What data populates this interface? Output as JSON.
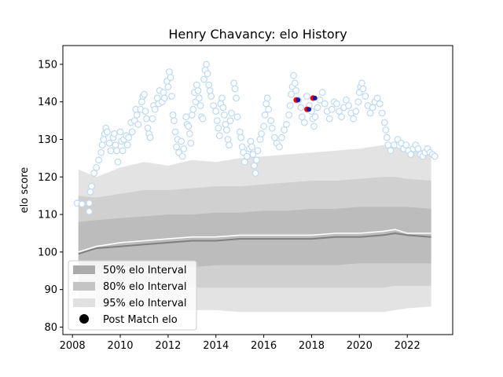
{
  "chart_data": {
    "type": "scatter",
    "title": "Henry Chavancy: elo History",
    "xlabel": "",
    "ylabel": "elo score",
    "xlim": [
      2007.6,
      2023.9
    ],
    "ylim": [
      78,
      155
    ],
    "x_ticks": [
      2008,
      2010,
      2012,
      2014,
      2016,
      2018,
      2020,
      2022
    ],
    "y_ticks": [
      80,
      90,
      100,
      110,
      120,
      130,
      140,
      150
    ],
    "colors": {
      "band95": "#e3e3e3",
      "band80": "#d0d0d0",
      "band50": "#bcbcbc",
      "median": "#7f7f7f",
      "player_line": "#ffffff",
      "marker_edge": "#bcd9f2",
      "highlight_red": "#ff0000",
      "highlight_blue": "#1a1aa0"
    },
    "legend": {
      "position": "lower-left",
      "entries": [
        {
          "label": "50% elo Interval",
          "swatch": "#ababab"
        },
        {
          "label": "80% elo Interval",
          "swatch": "#c4c4c4"
        },
        {
          "label": "95% elo Interval",
          "swatch": "#e0e0e0"
        },
        {
          "label": "Post Match elo",
          "swatch": "#000000"
        }
      ]
    },
    "intervals": {
      "x": [
        2008.25,
        2009.0,
        2010.0,
        2011.0,
        2012.0,
        2013.0,
        2014.0,
        2015.0,
        2016.0,
        2017.0,
        2018.0,
        2019.0,
        2020.0,
        2021.0,
        2021.5,
        2022.0,
        2023.0
      ],
      "p95_upper": [
        122.0,
        120.0,
        122.5,
        124.0,
        123.0,
        124.5,
        124.0,
        125.0,
        125.5,
        126.0,
        126.5,
        127.0,
        127.5,
        128.5,
        128.0,
        127.5,
        127.0
      ],
      "p95_lower": [
        85.0,
        85.5,
        85.0,
        84.5,
        84.5,
        84.5,
        84.5,
        84.0,
        84.0,
        84.0,
        84.0,
        84.0,
        84.0,
        84.0,
        84.5,
        85.0,
        85.5
      ],
      "p80_upper": [
        115.0,
        114.5,
        115.5,
        116.5,
        116.5,
        117.0,
        117.5,
        117.5,
        118.0,
        118.5,
        119.0,
        119.0,
        119.5,
        120.0,
        120.0,
        119.5,
        119.0
      ],
      "p80_lower": [
        89.5,
        90.0,
        90.0,
        90.5,
        90.5,
        90.5,
        90.5,
        90.5,
        90.5,
        90.5,
        90.5,
        90.5,
        90.5,
        90.5,
        91.0,
        91.0,
        91.0
      ],
      "p50_upper": [
        108.0,
        108.5,
        109.0,
        109.5,
        110.0,
        110.0,
        110.5,
        110.5,
        111.0,
        111.0,
        111.5,
        111.5,
        112.0,
        112.0,
        112.0,
        112.0,
        111.5
      ],
      "p50_lower": [
        95.5,
        95.5,
        96.0,
        96.0,
        96.0,
        96.0,
        96.5,
        96.5,
        96.5,
        96.5,
        96.5,
        96.5,
        97.0,
        97.0,
        97.0,
        97.0,
        97.0
      ],
      "median": [
        99.5,
        101.0,
        101.5,
        102.0,
        102.5,
        103.0,
        103.0,
        103.5,
        103.5,
        103.5,
        103.5,
        104.0,
        104.0,
        104.5,
        105.0,
        104.5,
        104.0
      ],
      "player_line": [
        100.0,
        101.5,
        102.5,
        103.0,
        103.5,
        104.0,
        104.0,
        104.5,
        104.5,
        104.5,
        104.5,
        105.0,
        105.0,
        105.5,
        106.0,
        105.0,
        105.0
      ]
    },
    "post_match_elo": [
      [
        2008.2,
        113.0
      ],
      [
        2008.4,
        112.8
      ],
      [
        2008.7,
        113.0
      ],
      [
        2008.7,
        110.8
      ],
      [
        2008.75,
        116.0
      ],
      [
        2008.8,
        117.5
      ],
      [
        2008.9,
        121.0
      ],
      [
        2009.0,
        122.5
      ],
      [
        2009.1,
        124.5
      ],
      [
        2009.2,
        126.5
      ],
      [
        2009.25,
        128.5
      ],
      [
        2009.3,
        130.0
      ],
      [
        2009.35,
        131.5
      ],
      [
        2009.4,
        133.0
      ],
      [
        2009.45,
        132.0
      ],
      [
        2009.55,
        129.0
      ],
      [
        2009.6,
        127.0
      ],
      [
        2009.7,
        130.5
      ],
      [
        2009.75,
        131.5
      ],
      [
        2009.8,
        128.5
      ],
      [
        2009.85,
        127.0
      ],
      [
        2009.9,
        124.0
      ],
      [
        2010.0,
        132.0
      ],
      [
        2010.05,
        129.5
      ],
      [
        2010.1,
        127.0
      ],
      [
        2010.15,
        130.0
      ],
      [
        2010.25,
        131.0
      ],
      [
        2010.3,
        128.5
      ],
      [
        2010.35,
        130.5
      ],
      [
        2010.45,
        134.5
      ],
      [
        2010.5,
        132.0
      ],
      [
        2010.6,
        135.0
      ],
      [
        2010.65,
        138.0
      ],
      [
        2010.7,
        136.5
      ],
      [
        2010.75,
        134.0
      ],
      [
        2010.85,
        138.0
      ],
      [
        2010.9,
        140.0
      ],
      [
        2010.95,
        141.5
      ],
      [
        2011.0,
        142.0
      ],
      [
        2011.05,
        137.5
      ],
      [
        2011.1,
        135.5
      ],
      [
        2011.15,
        133.0
      ],
      [
        2011.2,
        131.5
      ],
      [
        2011.25,
        130.5
      ],
      [
        2011.35,
        135.5
      ],
      [
        2011.4,
        139.0
      ],
      [
        2011.45,
        138.0
      ],
      [
        2011.55,
        141.0
      ],
      [
        2011.6,
        139.5
      ],
      [
        2011.65,
        143.0
      ],
      [
        2011.75,
        140.0
      ],
      [
        2011.8,
        142.5
      ],
      [
        2011.85,
        141.0
      ],
      [
        2011.95,
        145.5
      ],
      [
        2012.0,
        144.0
      ],
      [
        2012.05,
        148.0
      ],
      [
        2012.1,
        146.5
      ],
      [
        2012.15,
        141.5
      ],
      [
        2012.2,
        136.5
      ],
      [
        2012.25,
        135.0
      ],
      [
        2012.3,
        132.0
      ],
      [
        2012.35,
        128.0
      ],
      [
        2012.4,
        130.0
      ],
      [
        2012.45,
        126.5
      ],
      [
        2012.55,
        129.5
      ],
      [
        2012.6,
        125.5
      ],
      [
        2012.65,
        127.5
      ],
      [
        2012.75,
        136.0
      ],
      [
        2012.8,
        134.0
      ],
      [
        2012.85,
        133.5
      ],
      [
        2012.9,
        131.5
      ],
      [
        2012.95,
        129.0
      ],
      [
        2013.0,
        136.5
      ],
      [
        2013.05,
        138.0
      ],
      [
        2013.1,
        142.5
      ],
      [
        2013.15,
        140.0
      ],
      [
        2013.2,
        144.5
      ],
      [
        2013.25,
        143.0
      ],
      [
        2013.3,
        141.0
      ],
      [
        2013.35,
        139.0
      ],
      [
        2013.4,
        136.0
      ],
      [
        2013.45,
        135.5
      ],
      [
        2013.5,
        146.0
      ],
      [
        2013.55,
        148.5
      ],
      [
        2013.6,
        150.0
      ],
      [
        2013.65,
        147.5
      ],
      [
        2013.7,
        144.5
      ],
      [
        2013.75,
        143.0
      ],
      [
        2013.8,
        141.5
      ],
      [
        2013.9,
        139.0
      ],
      [
        2014.0,
        137.5
      ],
      [
        2014.05,
        135.0
      ],
      [
        2014.1,
        133.0
      ],
      [
        2014.15,
        131.0
      ],
      [
        2014.2,
        139.5
      ],
      [
        2014.25,
        141.0
      ],
      [
        2014.3,
        138.5
      ],
      [
        2014.35,
        136.5
      ],
      [
        2014.4,
        134.0
      ],
      [
        2014.45,
        132.5
      ],
      [
        2014.5,
        130.0
      ],
      [
        2014.55,
        128.5
      ],
      [
        2014.6,
        135.0
      ],
      [
        2014.65,
        137.0
      ],
      [
        2014.75,
        145.0
      ],
      [
        2014.8,
        143.5
      ],
      [
        2014.85,
        141.0
      ],
      [
        2014.9,
        136.0
      ],
      [
        2015.0,
        132.0
      ],
      [
        2015.05,
        130.5
      ],
      [
        2015.1,
        128.0
      ],
      [
        2015.15,
        126.5
      ],
      [
        2015.2,
        124.0
      ],
      [
        2015.3,
        125.5
      ],
      [
        2015.4,
        127.5
      ],
      [
        2015.45,
        129.5
      ],
      [
        2015.5,
        128.0
      ],
      [
        2015.55,
        126.0
      ],
      [
        2015.6,
        123.0
      ],
      [
        2015.65,
        121.0
      ],
      [
        2015.7,
        124.5
      ],
      [
        2015.75,
        127.0
      ],
      [
        2015.85,
        130.0
      ],
      [
        2015.9,
        131.5
      ],
      [
        2016.0,
        133.5
      ],
      [
        2016.05,
        136.5
      ],
      [
        2016.1,
        139.5
      ],
      [
        2016.15,
        141.0
      ],
      [
        2016.2,
        138.0
      ],
      [
        2016.3,
        135.0
      ],
      [
        2016.35,
        133.0
      ],
      [
        2016.45,
        130.5
      ],
      [
        2016.55,
        129.0
      ],
      [
        2016.65,
        128.0
      ],
      [
        2016.75,
        130.5
      ],
      [
        2016.85,
        132.5
      ],
      [
        2016.95,
        134.0
      ],
      [
        2017.05,
        136.5
      ],
      [
        2017.1,
        139.0
      ],
      [
        2017.15,
        142.0
      ],
      [
        2017.2,
        144.0
      ],
      [
        2017.25,
        147.0
      ],
      [
        2017.3,
        145.0
      ],
      [
        2017.35,
        143.0
      ],
      [
        2017.45,
        140.5
      ],
      [
        2017.55,
        138.5
      ],
      [
        2017.6,
        136.0
      ],
      [
        2017.7,
        134.5
      ],
      [
        2017.8,
        141.5
      ],
      [
        2017.9,
        139.0
      ],
      [
        2018.0,
        137.5
      ],
      [
        2018.05,
        135.5
      ],
      [
        2018.1,
        133.5
      ],
      [
        2018.15,
        136.0
      ],
      [
        2018.25,
        138.5
      ],
      [
        2018.35,
        140.5
      ],
      [
        2018.45,
        142.5
      ],
      [
        2018.55,
        139.5
      ],
      [
        2018.65,
        137.5
      ],
      [
        2018.75,
        135.5
      ],
      [
        2018.85,
        138.0
      ],
      [
        2018.95,
        140.0
      ],
      [
        2019.05,
        139.5
      ],
      [
        2019.15,
        137.5
      ],
      [
        2019.25,
        136.0
      ],
      [
        2019.35,
        138.5
      ],
      [
        2019.45,
        140.5
      ],
      [
        2019.55,
        139.0
      ],
      [
        2019.65,
        137.0
      ],
      [
        2019.75,
        135.5
      ],
      [
        2019.85,
        137.5
      ],
      [
        2019.95,
        140.0
      ],
      [
        2020.0,
        142.5
      ],
      [
        2020.05,
        144.0
      ],
      [
        2020.1,
        145.0
      ],
      [
        2020.15,
        143.5
      ],
      [
        2020.25,
        141.5
      ],
      [
        2020.35,
        139.0
      ],
      [
        2020.45,
        137.0
      ],
      [
        2020.55,
        138.5
      ],
      [
        2020.65,
        140.0
      ],
      [
        2020.75,
        141.0
      ],
      [
        2020.85,
        139.5
      ],
      [
        2020.95,
        137.0
      ],
      [
        2021.05,
        134.5
      ],
      [
        2021.1,
        132.5
      ],
      [
        2021.15,
        130.5
      ],
      [
        2021.2,
        128.5
      ],
      [
        2021.3,
        127.0
      ],
      [
        2021.45,
        128.5
      ],
      [
        2021.6,
        130.0
      ],
      [
        2021.75,
        129.0
      ],
      [
        2021.85,
        127.5
      ],
      [
        2021.95,
        128.5
      ],
      [
        2022.05,
        127.0
      ],
      [
        2022.15,
        126.0
      ],
      [
        2022.25,
        127.5
      ],
      [
        2022.35,
        128.5
      ],
      [
        2022.45,
        127.5
      ],
      [
        2022.55,
        126.0
      ],
      [
        2022.65,
        125.5
      ],
      [
        2022.75,
        126.5
      ],
      [
        2022.85,
        127.5
      ],
      [
        2022.95,
        126.5
      ],
      [
        2023.05,
        126.0
      ],
      [
        2023.15,
        125.5
      ]
    ],
    "highlight_points": [
      {
        "x": 2017.4,
        "y": 140.5
      },
      {
        "x": 2017.85,
        "y": 138.0
      },
      {
        "x": 2018.1,
        "y": 141.0
      }
    ]
  }
}
